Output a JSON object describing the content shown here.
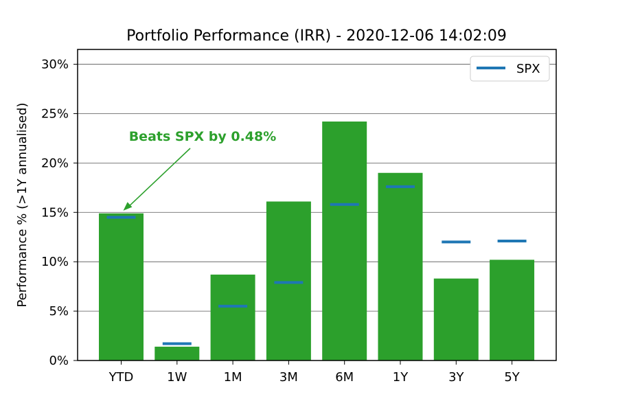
{
  "chart_data": {
    "type": "bar",
    "title": "Portfolio Performance (IRR) - 2020-12-06 14:02:09",
    "xlabel": "",
    "ylabel": "Performance % (>1Y annualised)",
    "categories": [
      "YTD",
      "1W",
      "1M",
      "3M",
      "6M",
      "1Y",
      "3Y",
      "5Y"
    ],
    "series": [
      {
        "name": "",
        "kind": "bar",
        "values": [
          14.9,
          1.4,
          8.7,
          16.1,
          24.2,
          19.0,
          8.3,
          10.2
        ],
        "color": "#2ca02c"
      },
      {
        "name": "SPX",
        "kind": "marker",
        "values": [
          14.5,
          1.7,
          5.5,
          7.9,
          15.8,
          17.6,
          12.0,
          12.1
        ],
        "color": "#1f77b4"
      }
    ],
    "ylim": [
      0,
      31.5
    ],
    "yticks": [
      0,
      5,
      10,
      15,
      20,
      25,
      30
    ],
    "ytick_labels": [
      "0%",
      "5%",
      "10%",
      "15%",
      "20%",
      "25%",
      "30%"
    ],
    "grid": "horizontal",
    "legend": {
      "position": "top-right",
      "entries": [
        "SPX"
      ]
    },
    "annotation": {
      "text": "Beats SPX by 0.48%",
      "target_category": "YTD",
      "target_value": 14.9,
      "color": "#2ca02c"
    }
  }
}
